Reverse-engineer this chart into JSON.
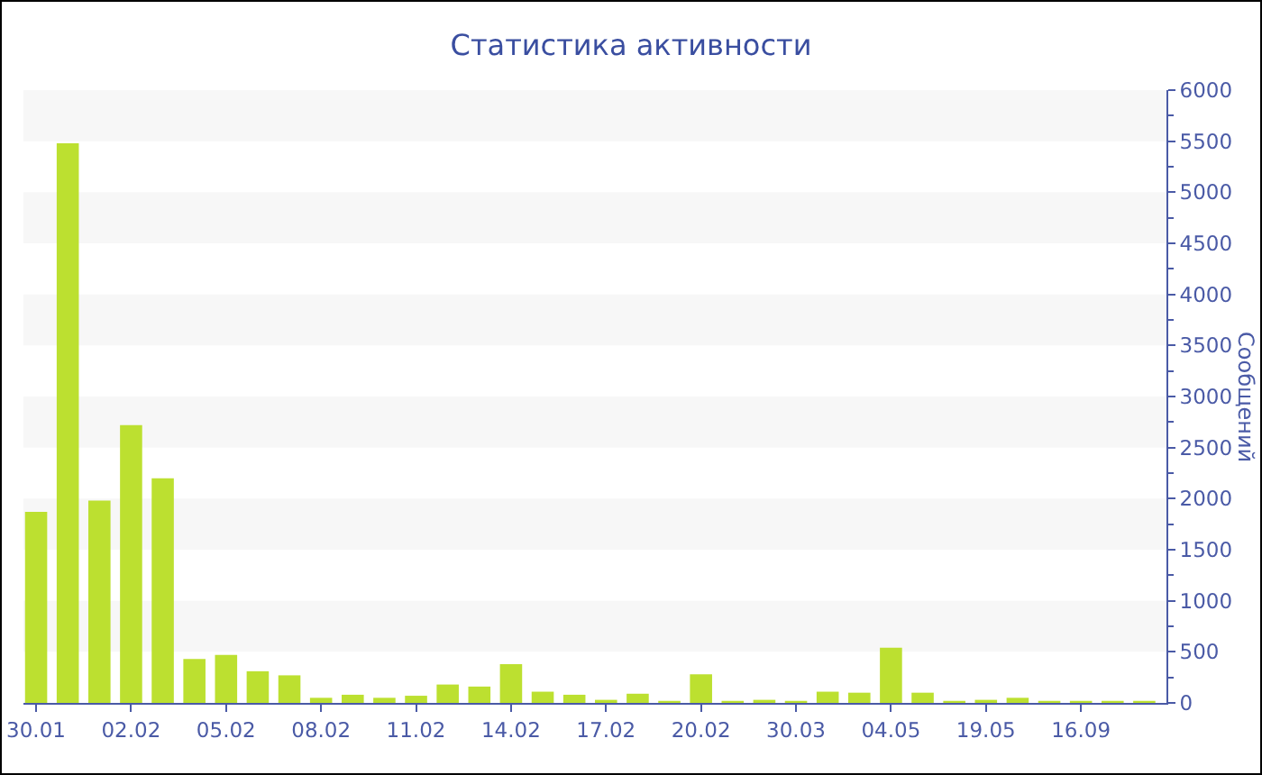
{
  "chart_data": {
    "type": "bar",
    "title": "Статистика активности",
    "ylabel": "Сообщений",
    "categories": [
      "30.01",
      null,
      null,
      "02.02",
      null,
      null,
      "05.02",
      null,
      null,
      "08.02",
      null,
      null,
      "11.02",
      null,
      null,
      "14.02",
      null,
      null,
      "17.02",
      null,
      null,
      "20.02",
      null,
      null,
      "30.03",
      null,
      null,
      "04.05",
      null,
      null,
      "19.05",
      null,
      null,
      "16.09",
      null,
      null
    ],
    "values": [
      1870,
      5480,
      1980,
      2720,
      2200,
      430,
      470,
      310,
      270,
      50,
      80,
      50,
      70,
      180,
      160,
      380,
      110,
      80,
      30,
      90,
      20,
      280,
      20,
      30,
      20,
      110,
      100,
      540,
      100,
      20,
      30,
      50,
      20,
      20,
      20,
      20
    ],
    "color": "#bce030",
    "ylim": [
      0,
      6000
    ],
    "yticks": [
      0,
      {
        "value": 250,
        "label": null
      },
      500,
      {
        "value": 750,
        "label": null
      },
      1000,
      {
        "value": 1250,
        "label": null
      },
      1500,
      {
        "value": 1750,
        "label": null
      },
      2000,
      {
        "value": 2250,
        "label": null
      },
      2500,
      {
        "value": 2750,
        "label": null
      },
      3000,
      {
        "value": 3250,
        "label": null
      },
      3500,
      {
        "value": 3750,
        "label": null
      },
      4000,
      {
        "value": 4250,
        "label": null
      },
      4500,
      {
        "value": 4750,
        "label": null
      },
      5000,
      {
        "value": 5250,
        "label": null
      },
      5500,
      {
        "value": 5750,
        "label": null
      },
      6000
    ],
    "bands": [
      {
        "axis": "y",
        "from": 500,
        "to": 1000,
        "color": "#f7f7f7"
      },
      {
        "axis": "y",
        "from": 1500,
        "to": 2000,
        "color": "#f7f7f7"
      },
      {
        "axis": "y",
        "from": 2500,
        "to": 3000,
        "color": "#f7f7f7"
      },
      {
        "axis": "y",
        "from": 3500,
        "to": 4000,
        "color": "#f7f7f7"
      },
      {
        "axis": "y",
        "from": 4500,
        "to": 5000,
        "color": "#f7f7f7"
      },
      {
        "axis": "y",
        "from": 5500,
        "to": 6000,
        "color": "#f7f7f7"
      }
    ]
  }
}
